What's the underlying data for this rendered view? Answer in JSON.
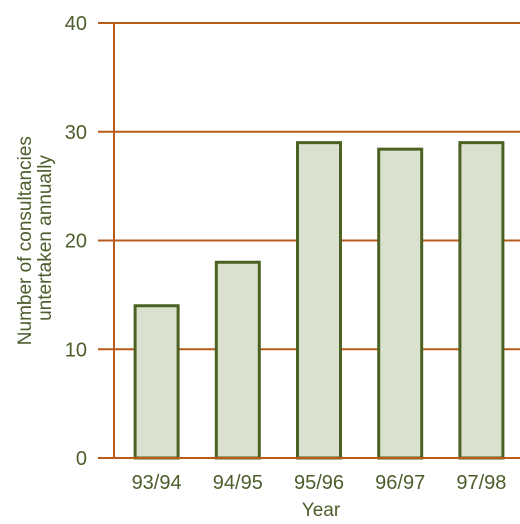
{
  "chart_data": {
    "type": "bar",
    "title": "",
    "categories": [
      "93/94",
      "94/95",
      "95/96",
      "96/97",
      "97/98"
    ],
    "values": [
      14,
      18,
      29,
      28.4,
      29
    ],
    "xlabel": "Year",
    "ylabel_lines": [
      "Number of consultancies",
      "untertaken annually"
    ],
    "ylim": [
      0,
      40
    ],
    "yticks": [
      0,
      10,
      20,
      30,
      40
    ],
    "grid": true,
    "legend": "none"
  },
  "colors": {
    "bar_fill": "#dbe1cf",
    "bar_stroke": "#4b6222",
    "grid": "#b85c1a",
    "axis": "#b85c1a",
    "text": "#4d5e2c"
  }
}
